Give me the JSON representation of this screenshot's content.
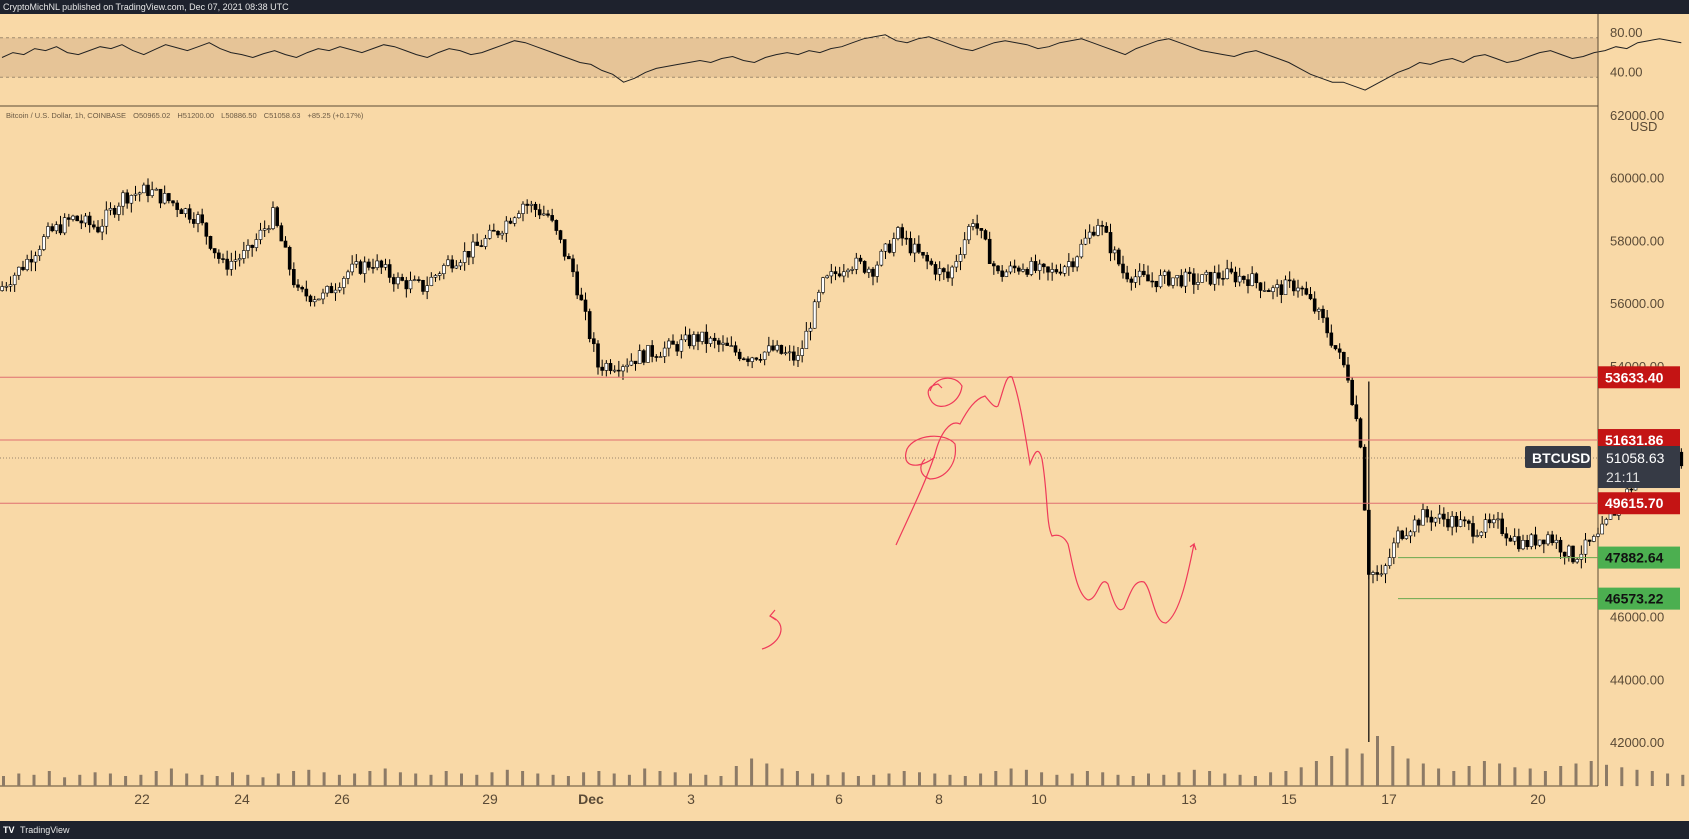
{
  "header": {
    "publish_line": "CryptoMichNL published on TradingView.com, Dec 07, 2021 08:38 UTC"
  },
  "footer": {
    "logo_text": "TV",
    "brand": "TradingView"
  },
  "legend": {
    "symbol": "Bitcoin / U.S. Dollar, 1h, COINBASE",
    "open": "O50965.02",
    "high": "H51200.00",
    "low": "L50886.50",
    "close": "C51058.63",
    "change": "+85.25 (+0.17%)"
  },
  "colors": {
    "background": "#f9d9a7",
    "red_label": "#c41414",
    "green_label": "#4caf50",
    "ticker_bg": "#363a45",
    "drawing": "#ef3a5a",
    "candle": "#000000",
    "volume": "#8c7a66"
  },
  "chart_data": [
    {
      "type": "line",
      "name_hint": "oscillator panel",
      "yticks": [
        "80.00",
        "40.00"
      ],
      "band": [
        35,
        75
      ],
      "ylim": [
        10,
        95
      ],
      "values": [
        55,
        60,
        58,
        64,
        62,
        66,
        60,
        58,
        62,
        66,
        64,
        68,
        62,
        58,
        63,
        68,
        65,
        62,
        66,
        70,
        64,
        60,
        58,
        55,
        59,
        62,
        58,
        55,
        60,
        64,
        62,
        66,
        63,
        60,
        64,
        68,
        66,
        62,
        58,
        55,
        60,
        64,
        62,
        58,
        60,
        64,
        68,
        72,
        70,
        66,
        62,
        58,
        54,
        50,
        48,
        42,
        38,
        30,
        34,
        40,
        44,
        46,
        48,
        50,
        52,
        50,
        54,
        56,
        52,
        50,
        55,
        58,
        60,
        58,
        62,
        60,
        64,
        66,
        70,
        74,
        76,
        78,
        72,
        70,
        74,
        76,
        72,
        68,
        64,
        62,
        66,
        70,
        72,
        70,
        68,
        64,
        66,
        70,
        72,
        74,
        70,
        66,
        62,
        58,
        64,
        68,
        72,
        74,
        70,
        66,
        62,
        60,
        58,
        56,
        60,
        62,
        58,
        54,
        50,
        44,
        38,
        34,
        30,
        30,
        26,
        22,
        28,
        34,
        40,
        44,
        50,
        48,
        52,
        54,
        50,
        56,
        58,
        54,
        50,
        52,
        56,
        60,
        62,
        58,
        54,
        56,
        60,
        62,
        66,
        64,
        70,
        72,
        74,
        72,
        70
      ]
    },
    {
      "type": "candlestick",
      "title": "Bitcoin / U.S. Dollar, 1h, COINBASE",
      "ylabel": "USD",
      "yticks": [
        "62000.00",
        "60000.00",
        "58000.00",
        "56000.00",
        "54000.00",
        "46000.00",
        "44000.00",
        "42000.00"
      ],
      "ylim": [
        41000,
        62000
      ],
      "xticks": [
        "22",
        "24",
        "26",
        "29",
        "Dec",
        "3",
        "6",
        "8",
        "10",
        "13",
        "15",
        "17",
        "20"
      ],
      "close_path": [
        [
          "Nov 20 12:00",
          56400
        ],
        [
          "Nov 20 18:00",
          57200
        ],
        [
          "Nov 21 00:00",
          58200
        ],
        [
          "Nov 21 06:00",
          58700
        ],
        [
          "Nov 21 12:00",
          58400
        ],
        [
          "Nov 21 18:00",
          59400
        ],
        [
          "Nov 22 00:00",
          59600
        ],
        [
          "Nov 22 06:00",
          59200
        ],
        [
          "Nov 22 12:00",
          58700
        ],
        [
          "Nov 22 18:00",
          57200
        ],
        [
          "Nov 23 00:00",
          57600
        ],
        [
          "Nov 23 06:00",
          58800
        ],
        [
          "Nov 23 12:00",
          56300
        ],
        [
          "Nov 23 18:00",
          56200
        ],
        [
          "Nov 24 00:00",
          57000
        ],
        [
          "Nov 24 06:00",
          57300
        ],
        [
          "Nov 24 12:00",
          56700
        ],
        [
          "Nov 24 18:00",
          56500
        ],
        [
          "Nov 25 00:00",
          57300
        ],
        [
          "Nov 25 06:00",
          57700
        ],
        [
          "Nov 25 12:00",
          58300
        ],
        [
          "Nov 25 18:00",
          59200
        ],
        [
          "Nov 26 00:00",
          58800
        ],
        [
          "Nov 26 06:00",
          57000
        ],
        [
          "Nov 26 12:00",
          54000
        ],
        [
          "Nov 26 18:00",
          54100
        ],
        [
          "Nov 27 00:00",
          54400
        ],
        [
          "Nov 27 06:00",
          54600
        ],
        [
          "Nov 27 12:00",
          54900
        ],
        [
          "Nov 27 18:00",
          54600
        ],
        [
          "Nov 28 00:00",
          54300
        ],
        [
          "Nov 28 06:00",
          54500
        ],
        [
          "Nov 28 12:00",
          54200
        ],
        [
          "Nov 28 18:00",
          56600
        ],
        [
          "Nov 29 00:00",
          57300
        ],
        [
          "Nov 29 06:00",
          57100
        ],
        [
          "Nov 29 12:00",
          58200
        ],
        [
          "Nov 29 18:00",
          57400
        ],
        [
          "Nov 30 00:00",
          56800
        ],
        [
          "Nov 30 06:00",
          58700
        ],
        [
          "Nov 30 12:00",
          56900
        ],
        [
          "Nov 30 18:00",
          57200
        ],
        [
          "Dec 1 00:00",
          56900
        ],
        [
          "Dec 1 06:00",
          57400
        ],
        [
          "Dec 1 12:00",
          58600
        ],
        [
          "Dec 1 18:00",
          57000
        ],
        [
          "Dec 2 00:00",
          56700
        ],
        [
          "Dec 2 06:00",
          56800
        ],
        [
          "Dec 2 12:00",
          56700
        ],
        [
          "Dec 2 18:00",
          56900
        ],
        [
          "Dec 3 00:00",
          56800
        ],
        [
          "Dec 3 06:00",
          56400
        ],
        [
          "Dec 3 12:00",
          56600
        ],
        [
          "Dec 3 18:00",
          55400
        ],
        [
          "Dec 4 00:00",
          53700
        ],
        [
          "Dec 4 03:00",
          51600
        ],
        [
          "Dec 4 05:00",
          47500
        ],
        [
          "Dec 4 08:00",
          47200
        ],
        [
          "Dec 4 12:00",
          48600
        ],
        [
          "Dec 4 18:00",
          49200
        ],
        [
          "Dec 5 00:00",
          49100
        ],
        [
          "Dec 5 06:00",
          48800
        ],
        [
          "Dec 5 12:00",
          48900
        ],
        [
          "Dec 5 18:00",
          48300
        ],
        [
          "Dec 6 00:00",
          48600
        ],
        [
          "Dec 6 06:00",
          47900
        ],
        [
          "Dec 6 12:00",
          48500
        ],
        [
          "Dec 6 18:00",
          49800
        ],
        [
          "Dec 7 00:00",
          50800
        ],
        [
          "Dec 7 06:00",
          51000
        ],
        [
          "Dec 7 08:00",
          51058.63
        ]
      ],
      "crash_low": {
        "x": "Dec 4 05:00",
        "y": 42000
      },
      "volume": [
        8,
        10,
        9,
        12,
        7,
        9,
        11,
        10,
        8,
        9,
        12,
        14,
        10,
        9,
        8,
        11,
        9,
        7,
        10,
        12,
        13,
        11,
        9,
        10,
        12,
        14,
        11,
        10,
        9,
        12,
        10,
        9,
        11,
        13,
        12,
        10,
        9,
        8,
        11,
        12,
        10,
        9,
        14,
        12,
        11,
        10,
        9,
        8,
        16,
        22,
        18,
        14,
        12,
        10,
        9,
        11,
        8,
        9,
        10,
        12,
        11,
        10,
        9,
        8,
        10,
        12,
        14,
        13,
        11,
        9,
        10,
        12,
        11,
        9,
        8,
        10,
        9,
        11,
        13,
        12,
        10,
        9,
        8,
        11,
        12,
        15,
        20,
        24,
        30,
        26,
        40,
        32,
        22,
        18,
        14,
        12,
        16,
        20,
        18,
        15,
        14,
        12,
        16,
        18,
        20,
        17,
        15,
        13,
        12,
        10,
        9
      ],
      "horizontal_levels": [
        {
          "value": "53633.40",
          "y": 53633.4,
          "kind": "resistance"
        },
        {
          "value": "51631.86",
          "y": 51631.86,
          "kind": "resistance"
        },
        {
          "value": "49615.70",
          "y": 49615.7,
          "kind": "resistance"
        },
        {
          "value": "47882.64",
          "y": 47882.64,
          "kind": "support"
        },
        {
          "value": "46573.22",
          "y": 46573.22,
          "kind": "support"
        }
      ],
      "last_price": {
        "symbol": "BTCUSD",
        "value": "51058.63",
        "countdown": "21:11",
        "y": 51058.63
      }
    }
  ]
}
